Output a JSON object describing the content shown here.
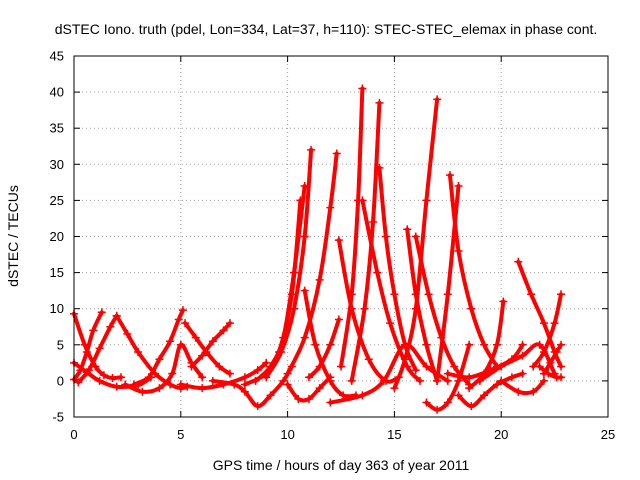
{
  "chart_data": {
    "type": "scatter",
    "title": "dSTEC Iono. truth (pdel, Lon=334, Lat=37, h=110): STEC-STEC_elemax in phase cont.",
    "xlabel": "GPS time / hours of day 363 of year 2011",
    "ylabel": "dSTEC  / TECUs",
    "xlim": [
      0,
      25
    ],
    "ylim": [
      -5,
      45
    ],
    "xticks": [
      0,
      5,
      10,
      15,
      20,
      25
    ],
    "yticks": [
      -5,
      0,
      5,
      10,
      15,
      20,
      25,
      30,
      35,
      40,
      45
    ],
    "grid": true,
    "marker": "+",
    "color": "#ff0000",
    "series": [
      {
        "x": [
          0.0,
          0.5,
          1.0,
          1.4,
          1.8,
          2.2
        ],
        "y": [
          9.3,
          5.0,
          2.0,
          0.8,
          0.4,
          0.5
        ]
      },
      {
        "x": [
          0.0,
          0.6,
          1.2,
          2.0,
          3.0,
          3.6
        ],
        "y": [
          2.5,
          1.2,
          0.0,
          -0.8,
          -0.6,
          0.5
        ]
      },
      {
        "x": [
          0.0,
          0.3,
          0.6,
          0.9,
          1.3
        ],
        "y": [
          0.2,
          1.5,
          4.0,
          7.0,
          9.5
        ]
      },
      {
        "x": [
          0.2,
          0.7,
          1.2,
          1.7,
          2.0
        ],
        "y": [
          -0.2,
          1.5,
          4.5,
          7.5,
          9.0
        ]
      },
      {
        "x": [
          2.0,
          2.5,
          3.0,
          3.8,
          4.5,
          5.0,
          5.3
        ],
        "y": [
          9.0,
          6.5,
          4.0,
          1.0,
          -0.5,
          -1.0,
          -0.8
        ]
      },
      {
        "x": [
          2.4,
          3.2,
          4.0,
          4.6,
          5.0,
          5.5,
          6.0
        ],
        "y": [
          -0.5,
          -1.5,
          -1.0,
          1.0,
          5.0,
          2.5,
          0.5
        ]
      },
      {
        "x": [
          2.8,
          3.5,
          4.0,
          4.5,
          4.9,
          5.1
        ],
        "y": [
          -0.5,
          0.5,
          3.0,
          5.5,
          8.5,
          9.8
        ]
      },
      {
        "x": [
          5.2,
          5.7,
          6.2,
          6.8,
          7.3
        ],
        "y": [
          8.0,
          6.0,
          4.0,
          2.0,
          1.0
        ]
      },
      {
        "x": [
          5.5,
          6.0,
          6.5,
          7.0,
          7.3
        ],
        "y": [
          2.0,
          3.5,
          5.5,
          7.0,
          8.0
        ]
      },
      {
        "x": [
          5.0,
          6.0,
          7.0,
          8.0,
          8.6,
          9.0
        ],
        "y": [
          -0.5,
          -1.0,
          -0.5,
          0.5,
          1.5,
          2.5
        ]
      },
      {
        "x": [
          6.5,
          7.5,
          8.0,
          8.6,
          9.2,
          9.8,
          10.2
        ],
        "y": [
          0.0,
          -0.5,
          -1.5,
          -3.5,
          -2.0,
          0.0,
          2.0
        ]
      },
      {
        "x": [
          8.0,
          9.0,
          9.6,
          10.2,
          10.6
        ],
        "y": [
          -0.5,
          1.0,
          4.0,
          12.0,
          25.0
        ]
      },
      {
        "x": [
          8.5,
          9.2,
          9.8,
          10.3,
          10.8
        ],
        "y": [
          0.0,
          2.0,
          6.0,
          15.0,
          27.0
        ]
      },
      {
        "x": [
          9.0,
          9.7,
          10.3,
          10.8,
          11.1
        ],
        "y": [
          0.5,
          4.0,
          10.0,
          20.0,
          32.0
        ]
      },
      {
        "x": [
          10.0,
          10.5,
          11.0,
          11.5,
          12.0
        ],
        "y": [
          -0.5,
          -2.5,
          -2.5,
          -1.0,
          0.5
        ]
      },
      {
        "x": [
          10.0,
          10.8,
          11.5,
          12.0,
          12.3
        ],
        "y": [
          1.0,
          6.0,
          14.0,
          24.0,
          31.5
        ]
      },
      {
        "x": [
          10.8,
          11.3,
          12.0,
          12.6,
          13.2
        ],
        "y": [
          12.5,
          5.0,
          0.0,
          -2.0,
          -2.0
        ]
      },
      {
        "x": [
          11.0,
          11.5,
          12.0,
          12.4
        ],
        "y": [
          0.5,
          2.0,
          5.0,
          8.5
        ]
      },
      {
        "x": [
          12.4,
          13.0,
          13.8,
          14.6,
          15.2
        ],
        "y": [
          19.5,
          10.0,
          3.0,
          0.0,
          0.5
        ]
      },
      {
        "x": [
          12.5,
          13.0,
          13.3,
          13.5
        ],
        "y": [
          2.0,
          12.0,
          25.0,
          40.5
        ]
      },
      {
        "x": [
          13.0,
          13.6,
          14.0,
          14.3
        ],
        "y": [
          0.0,
          10.0,
          22.0,
          38.5
        ]
      },
      {
        "x": [
          13.5,
          14.2,
          14.8,
          15.6,
          16.2
        ],
        "y": [
          25.0,
          15.0,
          8.0,
          2.0,
          0.0
        ]
      },
      {
        "x": [
          14.3,
          14.6,
          15.0,
          15.5,
          16.0
        ],
        "y": [
          29.5,
          20.0,
          12.0,
          5.0,
          1.5
        ]
      },
      {
        "x": [
          12.0,
          13.5,
          14.5,
          15.5,
          16.5,
          17.5
        ],
        "y": [
          -3.0,
          -2.0,
          0.0,
          5.0,
          2.0,
          0.0
        ]
      },
      {
        "x": [
          15.0,
          15.5,
          16.0,
          16.5,
          17.0
        ],
        "y": [
          -1.0,
          3.0,
          10.0,
          25.0,
          39.0
        ]
      },
      {
        "x": [
          15.6,
          16.0,
          16.5,
          17.0
        ],
        "y": [
          21.0,
          12.0,
          5.0,
          0.0
        ]
      },
      {
        "x": [
          16.0,
          16.6,
          17.2,
          17.8,
          18.5
        ],
        "y": [
          20.0,
          12.0,
          6.0,
          2.0,
          -0.5
        ]
      },
      {
        "x": [
          16.5,
          17.0,
          17.5,
          18.0,
          18.5
        ],
        "y": [
          -3.0,
          -4.0,
          -3.0,
          0.0,
          5.0
        ]
      },
      {
        "x": [
          17.0,
          17.5,
          18.0
        ],
        "y": [
          0.0,
          12.0,
          27.0
        ]
      },
      {
        "x": [
          17.6,
          18.0,
          18.6,
          19.2,
          19.8
        ],
        "y": [
          28.5,
          18.0,
          10.0,
          5.0,
          2.0
        ]
      },
      {
        "x": [
          18.0,
          18.6,
          19.2,
          19.8,
          20.5,
          21.0
        ],
        "y": [
          -2.0,
          -3.5,
          -2.0,
          -0.5,
          0.5,
          1.0
        ]
      },
      {
        "x": [
          18.5,
          19.2,
          19.8,
          20.1
        ],
        "y": [
          -1.0,
          1.0,
          5.0,
          11.0
        ]
      },
      {
        "x": [
          17.5,
          18.5,
          19.5,
          20.5,
          21.0
        ],
        "y": [
          1.0,
          0.5,
          1.5,
          3.0,
          5.0
        ]
      },
      {
        "x": [
          20.0,
          20.8,
          21.5,
          22.0
        ],
        "y": [
          0.0,
          -1.5,
          -1.5,
          0.0
        ]
      },
      {
        "x": [
          20.8,
          21.4,
          22.0,
          22.5,
          22.8
        ],
        "y": [
          16.5,
          12.0,
          8.0,
          4.0,
          2.0
        ]
      },
      {
        "x": [
          21.5,
          22.0,
          22.5,
          22.8
        ],
        "y": [
          2.0,
          4.0,
          8.0,
          12.0
        ]
      },
      {
        "x": [
          21.8,
          22.2,
          22.6,
          22.8
        ],
        "y": [
          2.0,
          1.0,
          0.5,
          0.5
        ]
      },
      {
        "x": [
          22.0,
          22.3,
          22.6,
          22.8
        ],
        "y": [
          1.0,
          2.5,
          4.0,
          5.0
        ]
      },
      {
        "x": [
          19.0,
          20.0,
          21.0,
          21.8,
          22.5
        ],
        "y": [
          0.0,
          2.0,
          3.5,
          5.0,
          1.0
        ]
      }
    ]
  }
}
